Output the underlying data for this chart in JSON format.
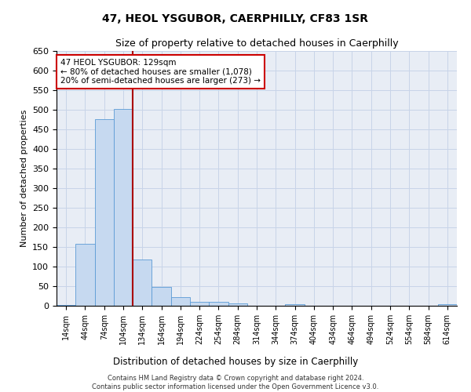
{
  "title": "47, HEOL YSGUBOR, CAERPHILLY, CF83 1SR",
  "subtitle": "Size of property relative to detached houses in Caerphilly",
  "xlabel": "Distribution of detached houses by size in Caerphilly",
  "ylabel": "Number of detached properties",
  "bar_color": "#c6d9f0",
  "bar_edge_color": "#5b9bd5",
  "grid_color": "#c8d4e8",
  "background_color": "#e8edf5",
  "property_line_color": "#aa0000",
  "annotation_box_color": "#ffffff",
  "annotation_border_color": "#cc0000",
  "categories": [
    "14sqm",
    "44sqm",
    "74sqm",
    "104sqm",
    "134sqm",
    "164sqm",
    "194sqm",
    "224sqm",
    "254sqm",
    "284sqm",
    "314sqm",
    "344sqm",
    "374sqm",
    "404sqm",
    "434sqm",
    "464sqm",
    "494sqm",
    "524sqm",
    "554sqm",
    "584sqm",
    "614sqm"
  ],
  "values": [
    3,
    158,
    476,
    503,
    119,
    49,
    22,
    11,
    10,
    7,
    0,
    0,
    5,
    0,
    0,
    0,
    0,
    0,
    0,
    0,
    4
  ],
  "ylim": [
    0,
    650
  ],
  "yticks": [
    0,
    50,
    100,
    150,
    200,
    250,
    300,
    350,
    400,
    450,
    500,
    550,
    600,
    650
  ],
  "property_label": "47 HEOL YSGUBOR: 129sqm",
  "annotation_line1": "← 80% of detached houses are smaller (1,078)",
  "annotation_line2": "20% of semi-detached houses are larger (273) →",
  "property_line_x": 3.5,
  "footer_line1": "Contains HM Land Registry data © Crown copyright and database right 2024.",
  "footer_line2": "Contains public sector information licensed under the Open Government Licence v3.0."
}
